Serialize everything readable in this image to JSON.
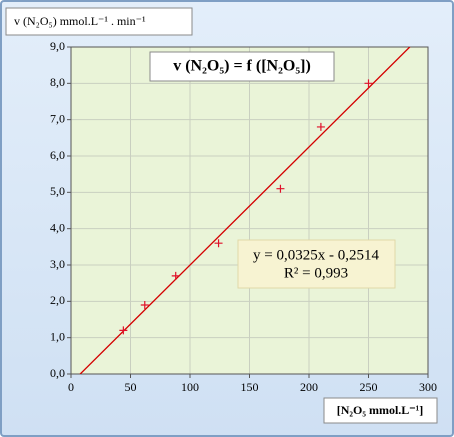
{
  "chart_data": {
    "type": "scatter",
    "title": "v (N₂O₅) = f ([N₂O₅])",
    "y_label": "v (N₂O₅) mmol.L⁻¹ . min⁻¹",
    "x_label": "[N₂O₅ mmol.L⁻¹]",
    "x": [
      44,
      62,
      88,
      124,
      176,
      210,
      250
    ],
    "series": [
      {
        "color": "#e0102a",
        "values": [
          1.2,
          1.9,
          2.7,
          3.6,
          5.1,
          6.8,
          8.0
        ]
      }
    ],
    "trendline": {
      "slope": 0.0325,
      "intercept": -0.2514,
      "color": "#d40000",
      "label": "y = 0,0325x - 0,2514",
      "r2_label": "R² = 0,993"
    },
    "xlim": [
      0,
      300
    ],
    "xticks": [
      0,
      50,
      100,
      150,
      200,
      250,
      300
    ],
    "ylim": [
      0,
      9
    ],
    "yticks": [
      {
        "value": 0,
        "label": "0,0"
      },
      {
        "value": 1,
        "label": "1,0"
      },
      {
        "value": 2,
        "label": "2,0"
      },
      {
        "value": 3,
        "label": "3,0"
      },
      {
        "value": 4,
        "label": "4,0"
      },
      {
        "value": 5,
        "label": "5,0"
      },
      {
        "value": 6,
        "label": "6,0"
      },
      {
        "value": 7,
        "label": "7,0"
      },
      {
        "value": 8,
        "label": "8,0"
      },
      {
        "value": 9,
        "label": "9,0"
      }
    ],
    "grid": true
  }
}
